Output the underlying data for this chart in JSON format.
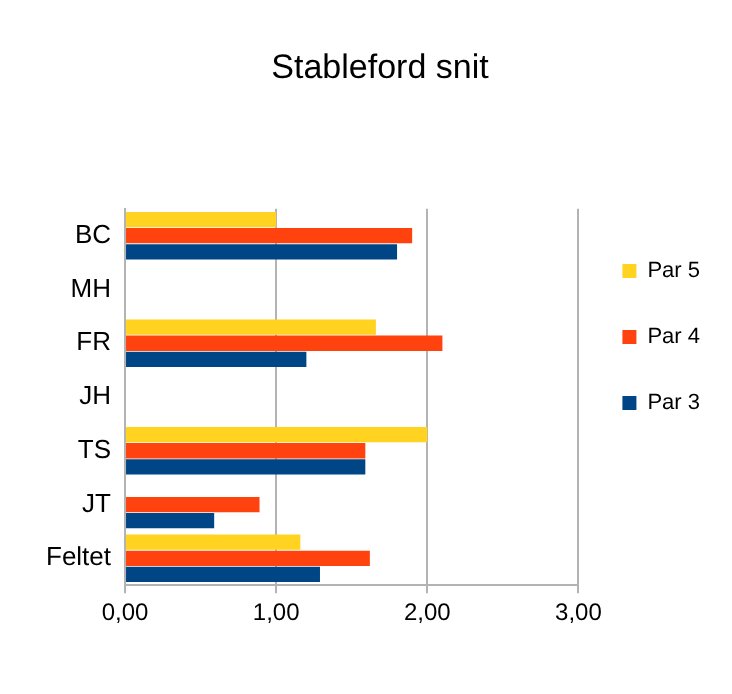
{
  "chart_data": {
    "type": "bar",
    "title": "Stableford snit",
    "orientation": "horizontal",
    "categories": [
      "BC",
      "MH",
      "FR",
      "JH",
      "TS",
      "JT",
      "Feltet"
    ],
    "series": [
      {
        "name": "Par 5",
        "color": "#ffd320",
        "values": [
          1.0,
          null,
          1.66,
          null,
          2.0,
          null,
          1.16
        ]
      },
      {
        "name": "Par 4",
        "color": "#ff420e",
        "values": [
          1.9,
          null,
          2.1,
          null,
          1.59,
          0.89,
          1.62
        ]
      },
      {
        "name": "Par 3",
        "color": "#004586",
        "values": [
          1.8,
          null,
          1.2,
          null,
          1.59,
          0.59,
          1.29
        ]
      }
    ],
    "xlim": [
      0,
      3
    ],
    "xticks": [
      {
        "value": 0,
        "label": "0,00"
      },
      {
        "value": 1,
        "label": "1,00"
      },
      {
        "value": 2,
        "label": "2,00"
      },
      {
        "value": 3,
        "label": "3,00"
      }
    ],
    "grid": "x",
    "legend": "right"
  }
}
